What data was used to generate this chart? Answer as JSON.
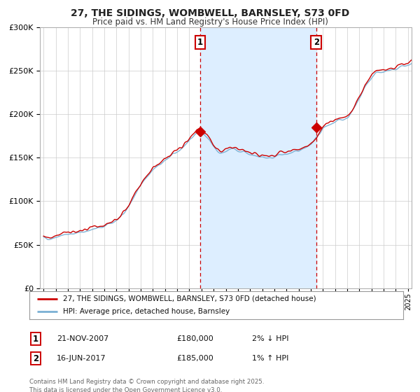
{
  "title": "27, THE SIDINGS, WOMBWELL, BARNSLEY, S73 0FD",
  "subtitle": "Price paid vs. HM Land Registry's House Price Index (HPI)",
  "background_color": "#ffffff",
  "plot_bg_color": "#ffffff",
  "shaded_region_color": "#ddeeff",
  "hpi_line_color": "#7ab0d4",
  "price_line_color": "#cc0000",
  "sale1_date_num": 2007.9,
  "sale2_date_num": 2017.45,
  "sale1_price": 180000,
  "sale2_price": 185000,
  "legend_label1": "27, THE SIDINGS, WOMBWELL, BARNSLEY, S73 0FD (detached house)",
  "legend_label2": "HPI: Average price, detached house, Barnsley",
  "table_row1": [
    "1",
    "21-NOV-2007",
    "£180,000",
    "2% ↓ HPI"
  ],
  "table_row2": [
    "2",
    "16-JUN-2017",
    "£185,000",
    "1% ↑ HPI"
  ],
  "footer": "Contains HM Land Registry data © Crown copyright and database right 2025.\nThis data is licensed under the Open Government Licence v3.0.",
  "ylim": [
    0,
    300000
  ],
  "yticks": [
    0,
    50000,
    100000,
    150000,
    200000,
    250000,
    300000
  ],
  "xmin": 1995.0,
  "xmax": 2025.3
}
